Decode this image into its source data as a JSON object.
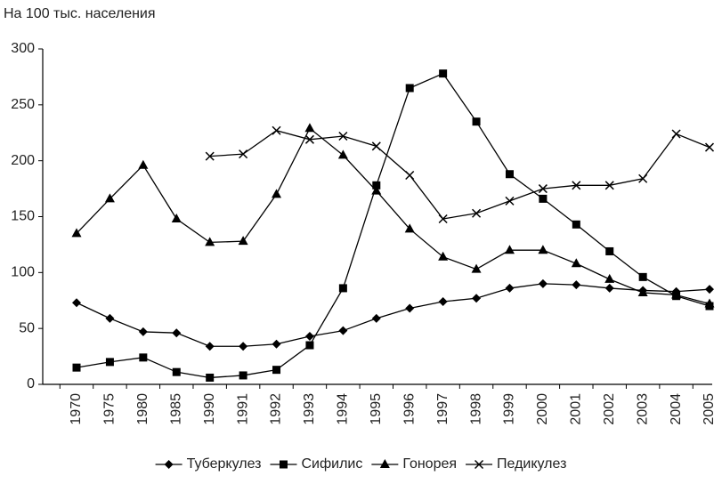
{
  "chart_data": {
    "type": "line",
    "y_axis_label": "На 100 тыс. населения",
    "categories": [
      "1970",
      "1975",
      "1980",
      "1985",
      "1990",
      "1991",
      "1992",
      "1993",
      "1994",
      "1995",
      "1996",
      "1997",
      "1998",
      "1999",
      "2000",
      "2001",
      "2002",
      "2003",
      "2004",
      "2005"
    ],
    "series": [
      {
        "name": "Туберкулез",
        "color": "#000000",
        "marker": "diamond",
        "values": [
          73,
          59,
          47,
          46,
          34,
          34,
          36,
          43,
          48,
          59,
          68,
          74,
          77,
          86,
          90,
          89,
          86,
          84,
          83,
          85
        ]
      },
      {
        "name": "Сифилис",
        "color": "#000000",
        "marker": "square",
        "values": [
          15,
          20,
          24,
          11,
          6,
          8,
          13,
          35,
          86,
          178,
          265,
          278,
          235,
          188,
          166,
          143,
          119,
          96,
          79,
          70
        ]
      },
      {
        "name": "Гонорея",
        "color": "#000000",
        "marker": "triangle",
        "values": [
          135,
          166,
          196,
          148,
          127,
          128,
          170,
          229,
          205,
          173,
          139,
          114,
          103,
          120,
          120,
          108,
          94,
          82,
          80,
          72
        ]
      },
      {
        "name": "Педикулез",
        "color": "#000000",
        "marker": "x",
        "values": [
          null,
          null,
          null,
          null,
          204,
          206,
          227,
          219,
          222,
          213,
          187,
          148,
          153,
          164,
          175,
          178,
          178,
          184,
          224,
          212
        ]
      }
    ],
    "ylim": [
      0,
      300
    ],
    "yticks": [
      0,
      50,
      100,
      150,
      200,
      250,
      300
    ],
    "legend": "bottom"
  }
}
